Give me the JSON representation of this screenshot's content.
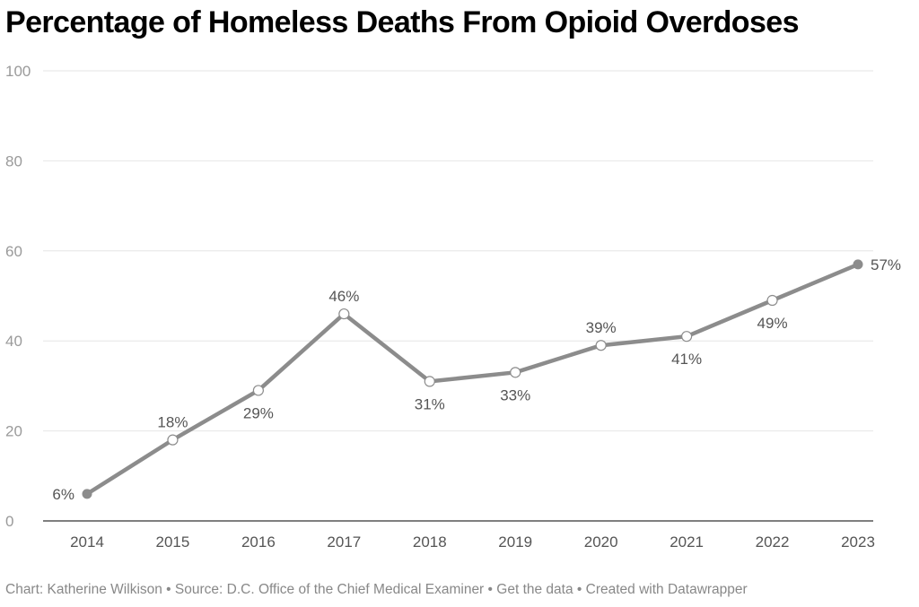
{
  "chart_data": {
    "type": "line",
    "title": "Percentage of Homeless Deaths From Opioid Overdoses",
    "x": [
      "2014",
      "2015",
      "2016",
      "2017",
      "2018",
      "2019",
      "2020",
      "2021",
      "2022",
      "2023"
    ],
    "series": [
      {
        "values": [
          6,
          18,
          29,
          46,
          31,
          33,
          39,
          41,
          49,
          57
        ]
      }
    ],
    "data_labels": [
      "6%",
      "18%",
      "29%",
      "46%",
      "31%",
      "33%",
      "39%",
      "41%",
      "49%",
      "57%"
    ],
    "label_side": [
      "left",
      "above",
      "below",
      "above",
      "below",
      "below",
      "above",
      "below",
      "below",
      "right"
    ],
    "ylim": [
      0,
      100
    ],
    "yticks": [
      0,
      20,
      40,
      60,
      80,
      100
    ],
    "grid": true,
    "xlabel": "",
    "ylabel": "",
    "line_color": "#8c8c8c",
    "grid_color": "#e6e6e6",
    "label_color": "#555555"
  },
  "footer": {
    "credit": "Chart: Katherine Wilkison",
    "source": "Source: D.C. Office of the Chief Medical Examiner",
    "get_data": "Get the data",
    "created_with": "Created with Datawrapper",
    "separator": " • "
  }
}
